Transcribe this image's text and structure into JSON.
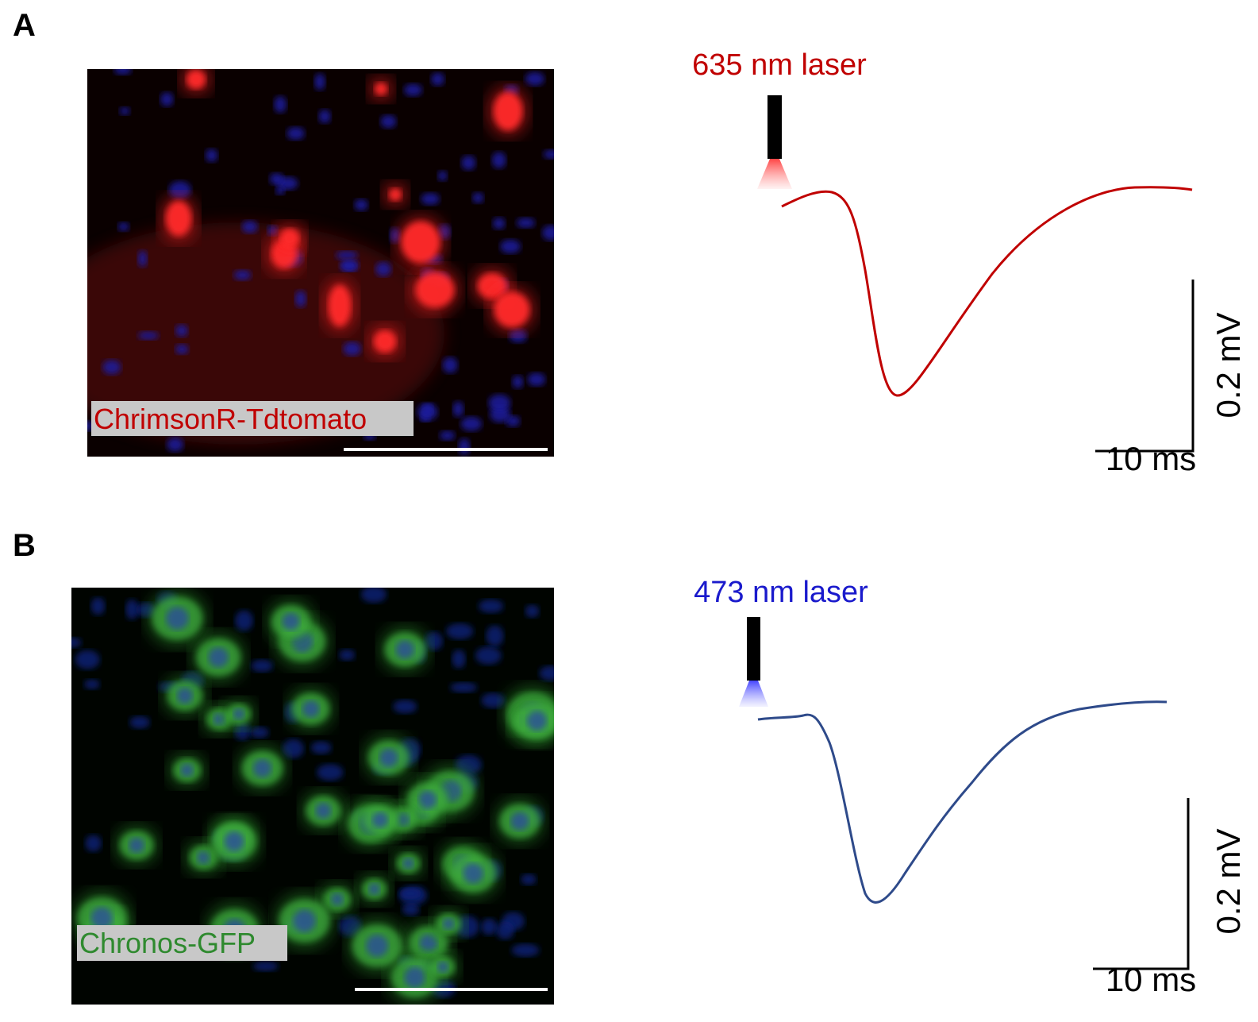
{
  "panels": [
    {
      "label": "A",
      "image_caption": "ChrimsonR-Tdtomato",
      "laser": "635 nm laser",
      "scale_y": "0.2 mV",
      "scale_x": "10 ms"
    },
    {
      "label": "B",
      "image_caption": "Chronos-GFP",
      "laser": "473 nm laser",
      "scale_y": "0.2 mV",
      "scale_x": "10 ms"
    }
  ]
}
